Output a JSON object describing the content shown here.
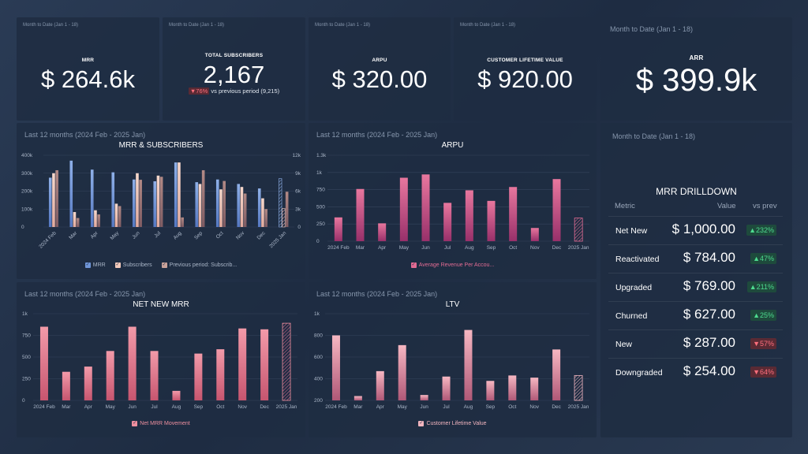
{
  "kpis": [
    {
      "period": "Month to Date (Jan 1 - 18)",
      "label": "MRR",
      "value": "$ 264.6k"
    },
    {
      "period": "Month to Date (Jan 1 - 18)",
      "label": "TOTAL SUBSCRIBERS",
      "value": "2,167",
      "change": "▼76%",
      "change_text": "vs previous period (9,215)"
    },
    {
      "period": "Month to Date (Jan 1 - 18)",
      "label": "ARPU",
      "value": "$ 320.00"
    },
    {
      "period": "Month to Date (Jan 1 - 18)",
      "label": "CUSTOMER LIFETIME VALUE",
      "value": "$ 920.00"
    },
    {
      "period": "Month to Date (Jan 1 - 18)",
      "label": "ARR",
      "value": "$ 399.9k"
    }
  ],
  "colors": {
    "blue": "#6f95d8",
    "blue_light": "#a9c1ea",
    "cream": "#f2c9bb",
    "pink": "#e26b93",
    "pink_dark": "#a4356a",
    "rose": "#ee8f9f",
    "grid": "#34445c",
    "axis_text": "#aab6c8"
  },
  "chart_data": [
    {
      "id": "mrr-subs",
      "type": "bar",
      "period": "Last 12 months (2024 Feb - 2025 Jan)",
      "title": "MRR & SUBSCRIBERS",
      "categories": [
        "2024 Feb",
        "Mar",
        "Apr",
        "May",
        "Jun",
        "Jul",
        "Aug",
        "Sep",
        "Oct",
        "Nov",
        "Dec",
        "2025 Jan"
      ],
      "y_ticks_left": [
        "400k",
        "300k",
        "200k",
        "100k",
        "0"
      ],
      "y_ticks_right": [
        "12k",
        "9k",
        "6k",
        "3k",
        "0"
      ],
      "ylim": [
        0,
        400000
      ],
      "ylim_right": [
        0,
        12000
      ],
      "series": [
        {
          "name": "MRR",
          "axis": "left",
          "values": [
            275000,
            370000,
            320000,
            305000,
            265000,
            255000,
            360000,
            250000,
            265000,
            240000,
            215000,
            270000
          ]
        },
        {
          "name": "Subscribers",
          "axis": "right",
          "values": [
            9000,
            2500,
            2800,
            3900,
            9000,
            8600,
            10800,
            7200,
            6300,
            6700,
            4800,
            3100
          ]
        },
        {
          "name": "Previous period: Subscrib...",
          "axis": "right",
          "values": [
            9500,
            1500,
            2100,
            3500,
            7900,
            8400,
            1600,
            9500,
            7700,
            5600,
            3000,
            5900
          ]
        }
      ]
    },
    {
      "id": "arpu",
      "type": "bar",
      "period": "Last 12 months (2024 Feb - 2025 Jan)",
      "title": "ARPU",
      "categories": [
        "2024 Feb",
        "Mar",
        "Apr",
        "May",
        "Jun",
        "Jul",
        "Aug",
        "Sep",
        "Oct",
        "Nov",
        "Dec",
        "2025 Jan"
      ],
      "y_ticks": [
        "1.3k",
        "1k",
        "750",
        "500",
        "250",
        "0"
      ],
      "ylim": [
        0,
        1300
      ],
      "series": [
        {
          "name": "Average Revenue Per Accou...",
          "values": [
            360,
            790,
            270,
            960,
            1010,
            580,
            770,
            610,
            820,
            200,
            940,
            350
          ]
        }
      ]
    },
    {
      "id": "net-new-mrr",
      "type": "bar",
      "period": "Last 12 months (2024 Feb - 2025 Jan)",
      "title": "NET NEW MRR",
      "categories": [
        "2024 Feb",
        "Mar",
        "Apr",
        "May",
        "Jun",
        "Jul",
        "Aug",
        "Sep",
        "Oct",
        "Nov",
        "Dec",
        "2025 Jan"
      ],
      "y_ticks": [
        "1k",
        "750",
        "500",
        "250",
        "0"
      ],
      "ylim": [
        0,
        1000
      ],
      "series": [
        {
          "name": "Net MRR Movement",
          "values": [
            850,
            330,
            390,
            570,
            850,
            570,
            110,
            540,
            590,
            830,
            820,
            890
          ]
        }
      ]
    },
    {
      "id": "ltv",
      "type": "bar",
      "period": "Last 12 months (2024 Feb - 2025 Jan)",
      "title": "LTV",
      "categories": [
        "2024 Feb",
        "Mar",
        "Apr",
        "May",
        "Jun",
        "Jul",
        "Aug",
        "Sep",
        "Oct",
        "Nov",
        "Dec",
        "2025 Jan"
      ],
      "y_ticks": [
        "1k",
        "800",
        "600",
        "400",
        "200"
      ],
      "ylim": [
        200,
        1000
      ],
      "series": [
        {
          "name": "Customer Lifetime Value",
          "values": [
            800,
            240,
            470,
            710,
            250,
            420,
            850,
            380,
            430,
            410,
            670,
            430
          ]
        }
      ]
    }
  ],
  "drilldown": {
    "period": "Month to Date (Jan 1 - 18)",
    "title": "MRR DRILLDOWN",
    "headers": {
      "metric": "Metric",
      "value": "Value",
      "prev": "vs prev"
    },
    "rows": [
      {
        "metric": "Net New",
        "value": "$ 1,000.00",
        "change": "▲232%",
        "dir": "up"
      },
      {
        "metric": "Reactivated",
        "value": "$ 784.00",
        "change": "▲47%",
        "dir": "up"
      },
      {
        "metric": "Upgraded",
        "value": "$ 769.00",
        "change": "▲211%",
        "dir": "up"
      },
      {
        "metric": "Churned",
        "value": "$ 627.00",
        "change": "▲25%",
        "dir": "up"
      },
      {
        "metric": "New",
        "value": "$ 287.00",
        "change": "▼57%",
        "dir": "down"
      },
      {
        "metric": "Downgraded",
        "value": "$ 254.00",
        "change": "▼64%",
        "dir": "down"
      }
    ]
  }
}
